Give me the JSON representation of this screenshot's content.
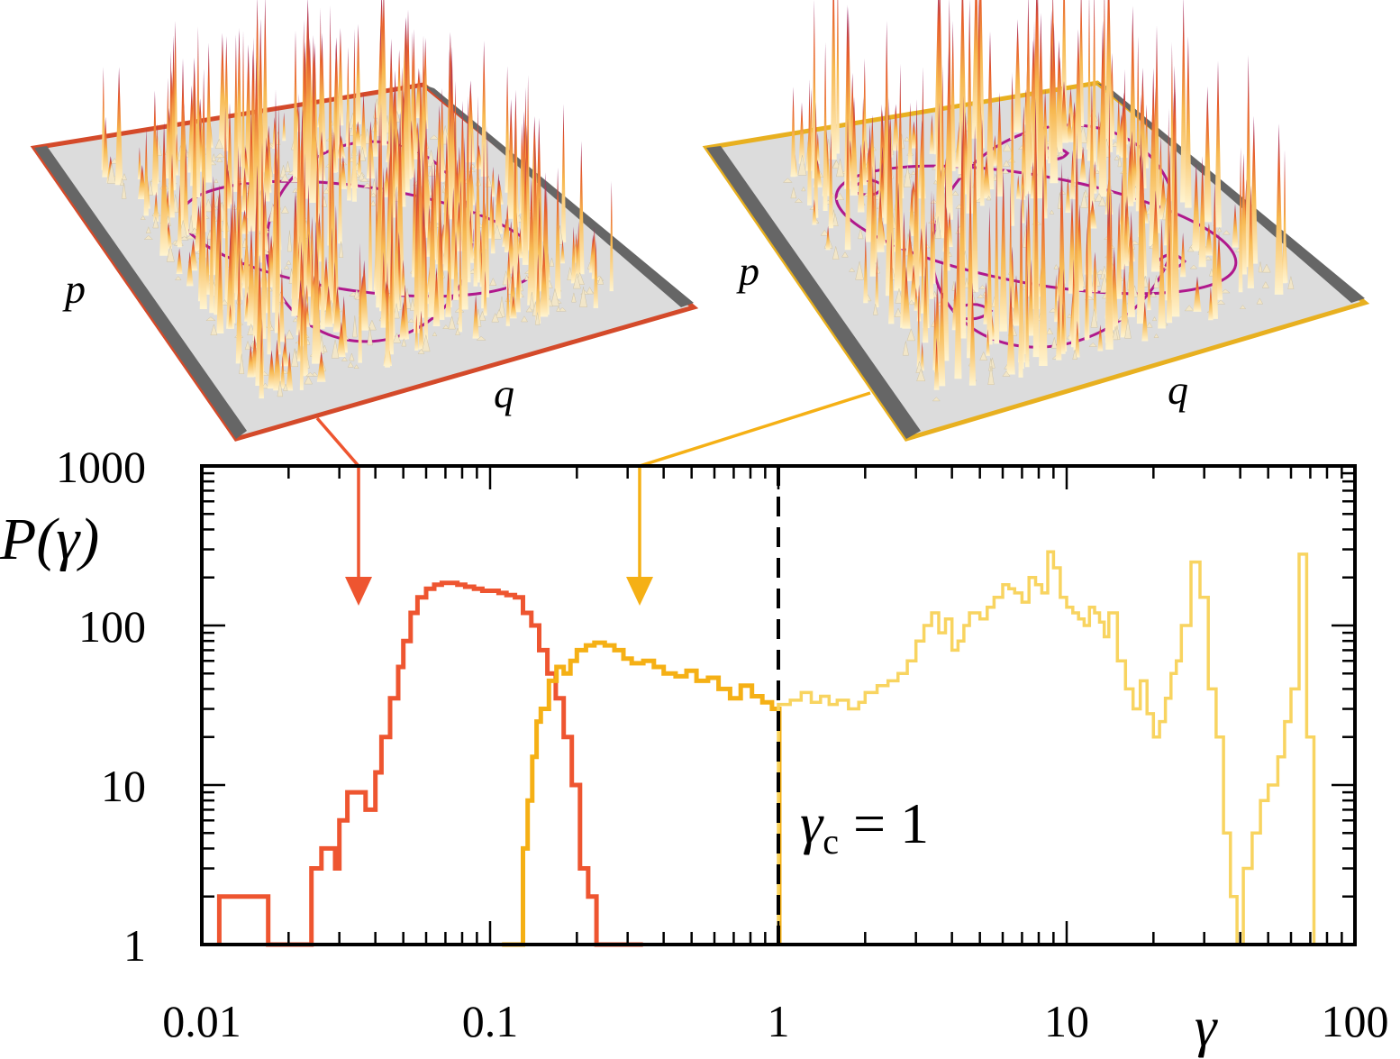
{
  "figure": {
    "panel_left": {
      "p_label": "p",
      "q_label": "q"
    },
    "panel_right": {
      "p_label": "p",
      "q_label": "q"
    },
    "annotation": {
      "symbol": "γ",
      "subscript": "c",
      "rest": " = 1"
    }
  },
  "colors": {
    "red_series": "#ee5530",
    "orange_series": "#f5b015",
    "light_series": "#f8d460",
    "axes": "#000000",
    "panel_floor": "#d9d9d9",
    "panel_wall": "#666666",
    "orbit": "#b0188c"
  },
  "chart_data": {
    "type": "line",
    "title": "",
    "xlabel": "γ",
    "ylabel": "P(γ)",
    "xscale": "log",
    "yscale": "log",
    "xlim": [
      0.01,
      100
    ],
    "ylim": [
      1,
      1000
    ],
    "xticks": [
      0.01,
      0.1,
      1,
      10,
      100
    ],
    "xtick_labels": [
      "0.01",
      "0.1",
      "1",
      "10",
      "100"
    ],
    "yticks": [
      1,
      10,
      100,
      1000
    ],
    "ytick_labels": [
      "1",
      "10",
      "100",
      "1000"
    ],
    "grid": false,
    "vline": {
      "x": 1,
      "style": "dashed",
      "label": "γc = 1"
    },
    "series": [
      {
        "style": "step",
        "color": "#ee5530",
        "x": [
          0.0115,
          0.0125,
          0.013,
          0.014,
          0.015,
          0.017,
          0.02,
          0.024,
          0.026,
          0.028,
          0.029,
          0.03,
          0.032,
          0.034,
          0.037,
          0.04,
          0.042,
          0.045,
          0.048,
          0.05,
          0.053,
          0.056,
          0.06,
          0.064,
          0.068,
          0.072,
          0.077,
          0.082,
          0.088,
          0.094,
          0.1,
          0.107,
          0.114,
          0.122,
          0.13,
          0.139,
          0.148,
          0.158,
          0.169,
          0.18,
          0.192,
          0.205,
          0.219,
          0.234,
          0.25,
          0.267,
          0.285,
          0.305,
          0.32
        ],
        "values": [
          2,
          2,
          2,
          2,
          2,
          1,
          1,
          3,
          4,
          4,
          3,
          6,
          9,
          9,
          7,
          12,
          20,
          35,
          55,
          80,
          120,
          150,
          170,
          180,
          185,
          185,
          180,
          175,
          170,
          165,
          165,
          160,
          155,
          150,
          120,
          100,
          70,
          50,
          35,
          20,
          10,
          3,
          2,
          1,
          1,
          1,
          1,
          1,
          1
        ]
      },
      {
        "style": "step",
        "color": "#f5b015",
        "x": [
          0.11,
          0.125,
          0.13,
          0.135,
          0.14,
          0.145,
          0.15,
          0.16,
          0.17,
          0.18,
          0.19,
          0.2,
          0.215,
          0.23,
          0.25,
          0.27,
          0.29,
          0.31,
          0.34,
          0.37,
          0.4,
          0.44,
          0.48,
          0.52,
          0.57,
          0.62,
          0.68,
          0.74,
          0.81,
          0.88,
          0.95
        ],
        "values": [
          1,
          1,
          4,
          8,
          15,
          25,
          30,
          45,
          55,
          50,
          60,
          70,
          75,
          78,
          75,
          70,
          62,
          58,
          60,
          55,
          50,
          48,
          52,
          45,
          47,
          40,
          35,
          42,
          36,
          33,
          30
        ]
      },
      {
        "style": "step",
        "color": "#f8d460",
        "x": [
          1.0,
          1.1,
          1.2,
          1.3,
          1.4,
          1.5,
          1.6,
          1.75,
          1.9,
          2.0,
          2.2,
          2.4,
          2.6,
          2.8,
          3.0,
          3.2,
          3.4,
          3.6,
          3.8,
          4.0,
          4.2,
          4.4,
          4.6,
          5.0,
          5.3,
          5.6,
          6.0,
          6.3,
          6.6,
          7.0,
          7.4,
          7.8,
          8.2,
          8.6,
          9.0,
          9.5,
          10.0,
          10.5,
          11.0,
          11.5,
          12.0,
          12.5,
          13.0,
          13.5,
          14.0,
          15.0,
          16.0,
          17.0,
          18.0,
          19.0,
          20.0,
          21.0,
          22.0,
          23.0,
          24.0,
          25.0,
          27.0,
          29.0,
          31.0,
          33.0,
          35.0,
          37.0,
          39.0,
          41.0,
          44.0,
          47.0,
          50.0,
          54.0,
          57.0,
          60.0,
          64.0,
          68.0
        ],
        "values": [
          32,
          34,
          38,
          33,
          36,
          32,
          34,
          30,
          33,
          38,
          42,
          45,
          50,
          60,
          80,
          100,
          120,
          90,
          110,
          70,
          80,
          100,
          120,
          110,
          130,
          150,
          180,
          170,
          160,
          140,
          200,
          180,
          160,
          290,
          230,
          150,
          130,
          120,
          110,
          100,
          130,
          120,
          105,
          85,
          120,
          60,
          40,
          30,
          45,
          28,
          20,
          25,
          35,
          50,
          60,
          100,
          250,
          150,
          40,
          20,
          5,
          2,
          1,
          3,
          5,
          8,
          10,
          15,
          25,
          40,
          280,
          20
        ]
      }
    ]
  }
}
